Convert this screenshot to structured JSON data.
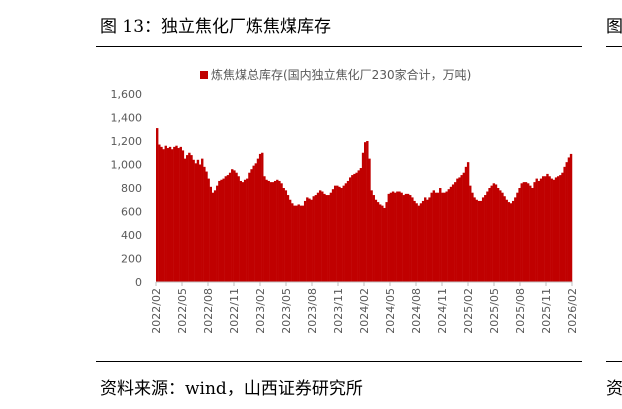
{
  "figure_title": "图 13：独立焦化厂炼焦煤库存",
  "source_text": "资料来源：wind，山西证券研究所",
  "edge_glyph_top": "图",
  "edge_glyph_bottom": "资",
  "colors": {
    "bar": "#c00000",
    "axis": "#bfbfbf",
    "text": "#595959"
  },
  "chart_data": {
    "type": "bar",
    "title": "",
    "legend": [
      "炼焦煤总库存(国内独立焦化厂230家合计，万吨)"
    ],
    "legend_position": "top",
    "xlabel": "",
    "ylabel": "",
    "ylim": [
      0,
      1600
    ],
    "yticks": [
      "0",
      "200",
      "400",
      "600",
      "800",
      "1,000",
      "1,200",
      "1,400",
      "1,600"
    ],
    "x_tick_labels": [
      "2022/02",
      "2022/05",
      "2022/08",
      "2022/11",
      "2023/02",
      "2023/05",
      "2023/08",
      "2023/11",
      "2024/02",
      "2024/05",
      "2024/08",
      "2024/11",
      "2025/02",
      "2025/05",
      "2025/08",
      "2025/11",
      "2026/02"
    ],
    "x_range": [
      "2022-02-01",
      "2026-02-28"
    ],
    "series": [
      {
        "name": "炼焦煤总库存(国内独立焦化厂230家合计，万吨)",
        "unit": "万吨",
        "frequency": "weekly",
        "values": [
          1310,
          1170,
          1150,
          1130,
          1160,
          1140,
          1150,
          1130,
          1150,
          1160,
          1140,
          1150,
          1120,
          1050,
          1080,
          1100,
          1080,
          1040,
          1010,
          1040,
          1000,
          1050,
          980,
          940,
          880,
          810,
          760,
          780,
          820,
          860,
          870,
          880,
          900,
          910,
          930,
          960,
          950,
          930,
          900,
          860,
          850,
          870,
          880,
          930,
          960,
          990,
          1010,
          1050,
          1090,
          1100,
          900,
          870,
          860,
          850,
          850,
          860,
          870,
          860,
          840,
          800,
          780,
          740,
          700,
          670,
          650,
          650,
          660,
          650,
          650,
          690,
          720,
          710,
          700,
          730,
          740,
          760,
          780,
          770,
          750,
          740,
          740,
          760,
          790,
          820,
          820,
          810,
          800,
          820,
          840,
          860,
          890,
          910,
          920,
          930,
          950,
          970,
          1100,
          1190,
          1200,
          1050,
          780,
          740,
          700,
          680,
          660,
          650,
          630,
          680,
          750,
          760,
          770,
          760,
          770,
          770,
          760,
          740,
          750,
          750,
          740,
          720,
          690,
          670,
          650,
          670,
          690,
          720,
          700,
          720,
          760,
          780,
          760,
          760,
          800,
          760,
          760,
          770,
          790,
          810,
          830,
          850,
          880,
          890,
          910,
          930,
          980,
          1020,
          820,
          760,
          720,
          700,
          690,
          690,
          720,
          740,
          770,
          800,
          820,
          840,
          830,
          800,
          780,
          760,
          730,
          700,
          680,
          670,
          690,
          720,
          760,
          800,
          840,
          850,
          850,
          840,
          820,
          800,
          850,
          880,
          860,
          880,
          900,
          900,
          920,
          900,
          880,
          870,
          890,
          900,
          910,
          930,
          980,
          1020,
          1060,
          1090
        ]
      }
    ]
  }
}
